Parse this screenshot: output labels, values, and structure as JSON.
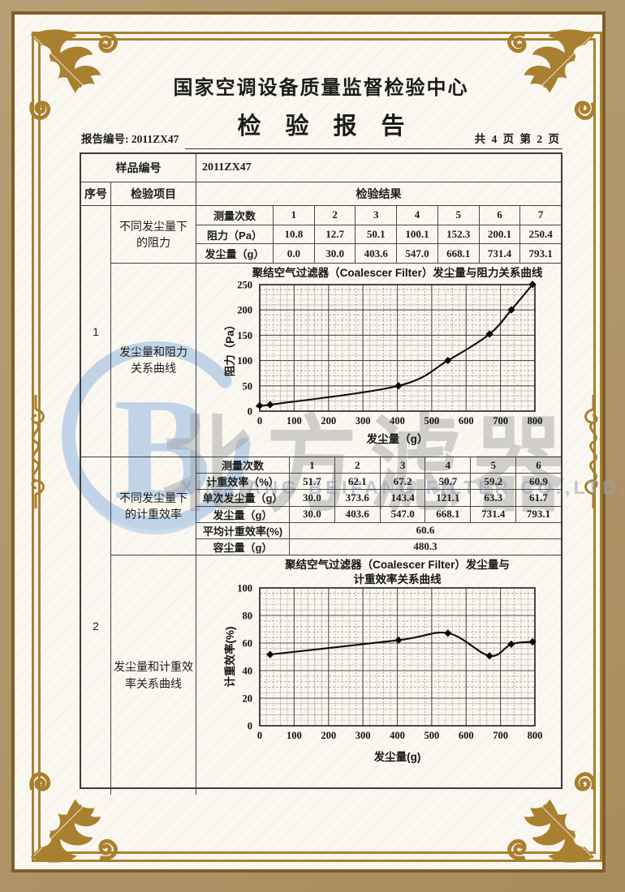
{
  "header": {
    "org_title": "国家空调设备质量监督检验中心",
    "report_title": "检验报告",
    "report_no": "报告编号: 2011ZX47",
    "page_info": "共 4 页 第 2 页"
  },
  "sample": {
    "label": "样品编号",
    "value": "2011ZX47"
  },
  "table_head": {
    "no": "序号",
    "item": "检验项目",
    "result": "检验结果"
  },
  "section1": {
    "no": "1",
    "item_table": "不同发尘量下\n的阻力",
    "item_chart": "发尘量和阻力\n关系曲线",
    "results": {
      "rows": [
        {
          "label": "测量次数",
          "values": [
            "1",
            "2",
            "3",
            "4",
            "5",
            "6",
            "7"
          ]
        },
        {
          "label": "阻力（Pa）",
          "values": [
            "10.8",
            "12.7",
            "50.1",
            "100.1",
            "152.3",
            "200.1",
            "250.4"
          ]
        },
        {
          "label": "发尘量（g）",
          "values": [
            "0.0",
            "30.0",
            "403.6",
            "547.0",
            "668.1",
            "731.4",
            "793.1"
          ]
        }
      ]
    }
  },
  "section2": {
    "no": "2",
    "item_table": "不同发尘量下\n的计重效率",
    "item_chart": "发尘量和计重效\n率关系曲线",
    "results": {
      "rows": [
        {
          "label": "测量次数",
          "values": [
            "1",
            "2",
            "3",
            "4",
            "5",
            "6"
          ]
        },
        {
          "label": "计重效率（%）",
          "values": [
            "51.7",
            "62.1",
            "67.2",
            "50.7",
            "59.2",
            "60.9"
          ]
        },
        {
          "label": "单次发尘量（g）",
          "values": [
            "30.0",
            "373.6",
            "143.4",
            "121.1",
            "63.3",
            "61.7"
          ]
        },
        {
          "label": "发尘量（g）",
          "values": [
            "30.0",
            "403.6",
            "547.0",
            "668.1",
            "731.4",
            "793.1"
          ]
        }
      ],
      "summary": [
        {
          "label": "平均计重效率(%)",
          "value": "60.6"
        },
        {
          "label": "容尘量（g）",
          "value": "480.3"
        }
      ]
    }
  },
  "watermark": {
    "logo_letter": "B",
    "text": "北方滤器",
    "subtext": "XINXIANG BEIFANG FILTER CO.,LTD.",
    "logo_color": "#b7cee6",
    "text_color": "#9e9e9e",
    "gold_color": "#a9802f"
  },
  "chart_data": [
    {
      "type": "line",
      "title_lines": [
        "聚结空气过滤器（Coalescer Filter）发尘量与阻力关系曲线"
      ],
      "xlabel": "发尘量（g）",
      "ylabel": "阻力（Pa）",
      "x": [
        0,
        30.0,
        403.6,
        547.0,
        668.1,
        731.4,
        793.1
      ],
      "y": [
        10.8,
        12.7,
        50.1,
        100.1,
        152.3,
        200.1,
        250.4
      ],
      "xlim": [
        0,
        800
      ],
      "ylim": [
        0,
        250
      ],
      "xticks": [
        0,
        100,
        200,
        300,
        400,
        500,
        600,
        700,
        800
      ],
      "yticks": [
        0,
        50,
        100,
        150,
        200,
        250
      ],
      "grid": true,
      "legend": "none",
      "marker": "diamond"
    },
    {
      "type": "line",
      "title_lines": [
        "聚结空气过滤器（Coalescer Filter）发尘量与",
        "计重效率关系曲线"
      ],
      "xlabel": "发尘量(g)",
      "ylabel": "计重效率(%)",
      "x": [
        30.0,
        403.6,
        547.0,
        668.1,
        731.4,
        793.1
      ],
      "y": [
        51.7,
        62.1,
        67.2,
        50.7,
        59.2,
        60.9
      ],
      "xlim": [
        0,
        800
      ],
      "ylim": [
        0,
        100
      ],
      "xticks": [
        0,
        100,
        200,
        300,
        400,
        500,
        600,
        700,
        800
      ],
      "yticks": [
        0,
        20,
        40,
        60,
        80,
        100
      ],
      "grid": true,
      "legend": "none",
      "marker": "diamond"
    }
  ]
}
